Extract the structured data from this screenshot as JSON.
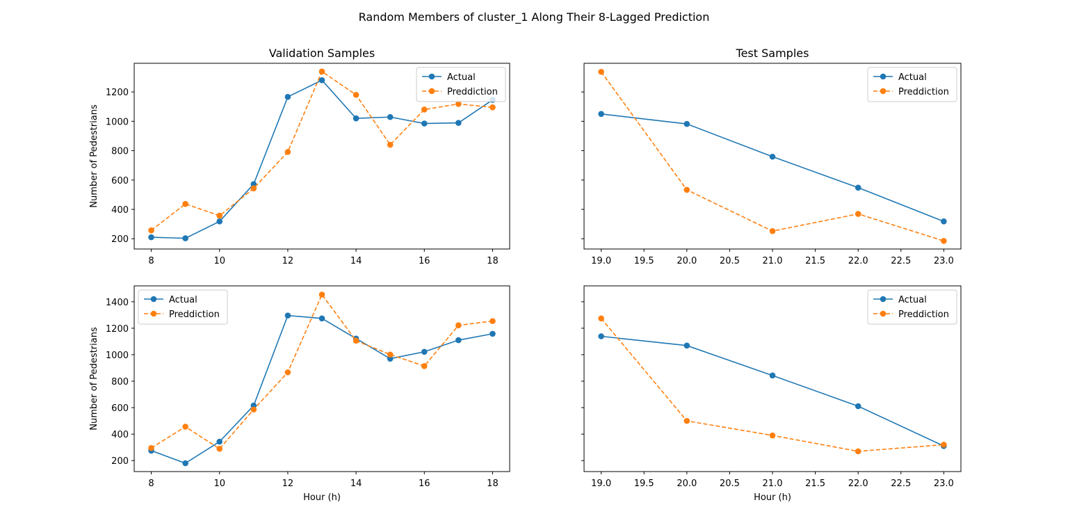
{
  "figure": {
    "title": "Random Members of cluster_1 Along Their 8-Lagged Prediction",
    "colors": {
      "actual": "#1f77b4",
      "prediction": "#ff7f0e"
    }
  },
  "chart_data": [
    {
      "type": "line",
      "title": "Validation Samples",
      "xlabel": "",
      "ylabel": "Number of Pedestrians",
      "x": [
        8,
        9,
        10,
        11,
        12,
        13,
        14,
        15,
        16,
        17,
        18
      ],
      "xlim": [
        7.5,
        18.5
      ],
      "ylim": [
        130,
        1395
      ],
      "xticks": [
        8,
        10,
        12,
        14,
        16,
        18
      ],
      "yticks": [
        200,
        400,
        600,
        800,
        1000,
        1200
      ],
      "xtick_labels": [
        "8",
        "10",
        "12",
        "14",
        "16",
        "18"
      ],
      "ytick_labels": [
        "200",
        "400",
        "600",
        "800",
        "1000",
        "1200"
      ],
      "show_ytick_labels": true,
      "grid": false,
      "legend": "upper right",
      "series": [
        {
          "name": "Actual",
          "style": "solid",
          "values": [
            210,
            203,
            318,
            572,
            1166,
            1280,
            1020,
            1029,
            985,
            989,
            1146
          ]
        },
        {
          "name": "Preddiction",
          "style": "dashed",
          "values": [
            257,
            437,
            357,
            543,
            791,
            1339,
            1180,
            840,
            1080,
            1118,
            1095
          ]
        }
      ]
    },
    {
      "type": "line",
      "title": "Test Samples",
      "xlabel": "",
      "ylabel": "",
      "x": [
        19,
        20,
        21,
        22,
        23
      ],
      "xlim": [
        18.8,
        23.2
      ],
      "ylim": [
        130,
        1395
      ],
      "xticks": [
        19.0,
        19.5,
        20.0,
        20.5,
        21.0,
        21.5,
        22.0,
        22.5,
        23.0
      ],
      "yticks": [
        200,
        400,
        600,
        800,
        1000,
        1200
      ],
      "xtick_labels": [
        "19.0",
        "19.5",
        "20.0",
        "20.5",
        "21.0",
        "21.5",
        "22.0",
        "22.5",
        "23.0"
      ],
      "ytick_labels": [],
      "show_ytick_labels": false,
      "grid": false,
      "legend": "upper right",
      "series": [
        {
          "name": "Actual",
          "style": "solid",
          "values": [
            1050,
            982,
            759,
            548,
            318
          ]
        },
        {
          "name": "Preddiction",
          "style": "dashed",
          "values": [
            1337,
            533,
            252,
            369,
            185
          ]
        }
      ]
    },
    {
      "type": "line",
      "title": "",
      "xlabel": "Hour (h)",
      "ylabel": "Number of Pedestrians",
      "x": [
        8,
        9,
        10,
        11,
        12,
        13,
        14,
        15,
        16,
        17,
        18
      ],
      "xlim": [
        7.5,
        18.5
      ],
      "ylim": [
        117,
        1520
      ],
      "xticks": [
        8,
        10,
        12,
        14,
        16,
        18
      ],
      "yticks": [
        200,
        400,
        600,
        800,
        1000,
        1200,
        1400
      ],
      "xtick_labels": [
        "8",
        "10",
        "12",
        "14",
        "16",
        "18"
      ],
      "ytick_labels": [
        "200",
        "400",
        "600",
        "800",
        "1000",
        "1200",
        "1400"
      ],
      "show_ytick_labels": true,
      "grid": false,
      "legend": "upper left",
      "series": [
        {
          "name": "Actual",
          "style": "solid",
          "values": [
            275,
            180,
            343,
            616,
            1296,
            1274,
            1122,
            970,
            1022,
            1110,
            1158
          ]
        },
        {
          "name": "Preddiction",
          "style": "dashed",
          "values": [
            295,
            456,
            289,
            586,
            867,
            1454,
            1106,
            1001,
            914,
            1222,
            1254
          ]
        }
      ]
    },
    {
      "type": "line",
      "title": "",
      "xlabel": "Hour (h)",
      "ylabel": "",
      "x": [
        19,
        20,
        21,
        22,
        23
      ],
      "xlim": [
        18.8,
        23.2
      ],
      "ylim": [
        117,
        1520
      ],
      "xticks": [
        19.0,
        19.5,
        20.0,
        20.5,
        21.0,
        21.5,
        22.0,
        22.5,
        23.0
      ],
      "yticks": [
        200,
        400,
        600,
        800,
        1000,
        1200,
        1400
      ],
      "xtick_labels": [
        "19.0",
        "19.5",
        "20.0",
        "20.5",
        "21.0",
        "21.5",
        "22.0",
        "22.5",
        "23.0"
      ],
      "ytick_labels": [],
      "show_ytick_labels": false,
      "grid": false,
      "legend": "upper right",
      "series": [
        {
          "name": "Actual",
          "style": "solid",
          "values": [
            1139,
            1069,
            843,
            611,
            310
          ]
        },
        {
          "name": "Preddiction",
          "style": "dashed",
          "values": [
            1274,
            500,
            390,
            270,
            320
          ]
        }
      ]
    }
  ]
}
